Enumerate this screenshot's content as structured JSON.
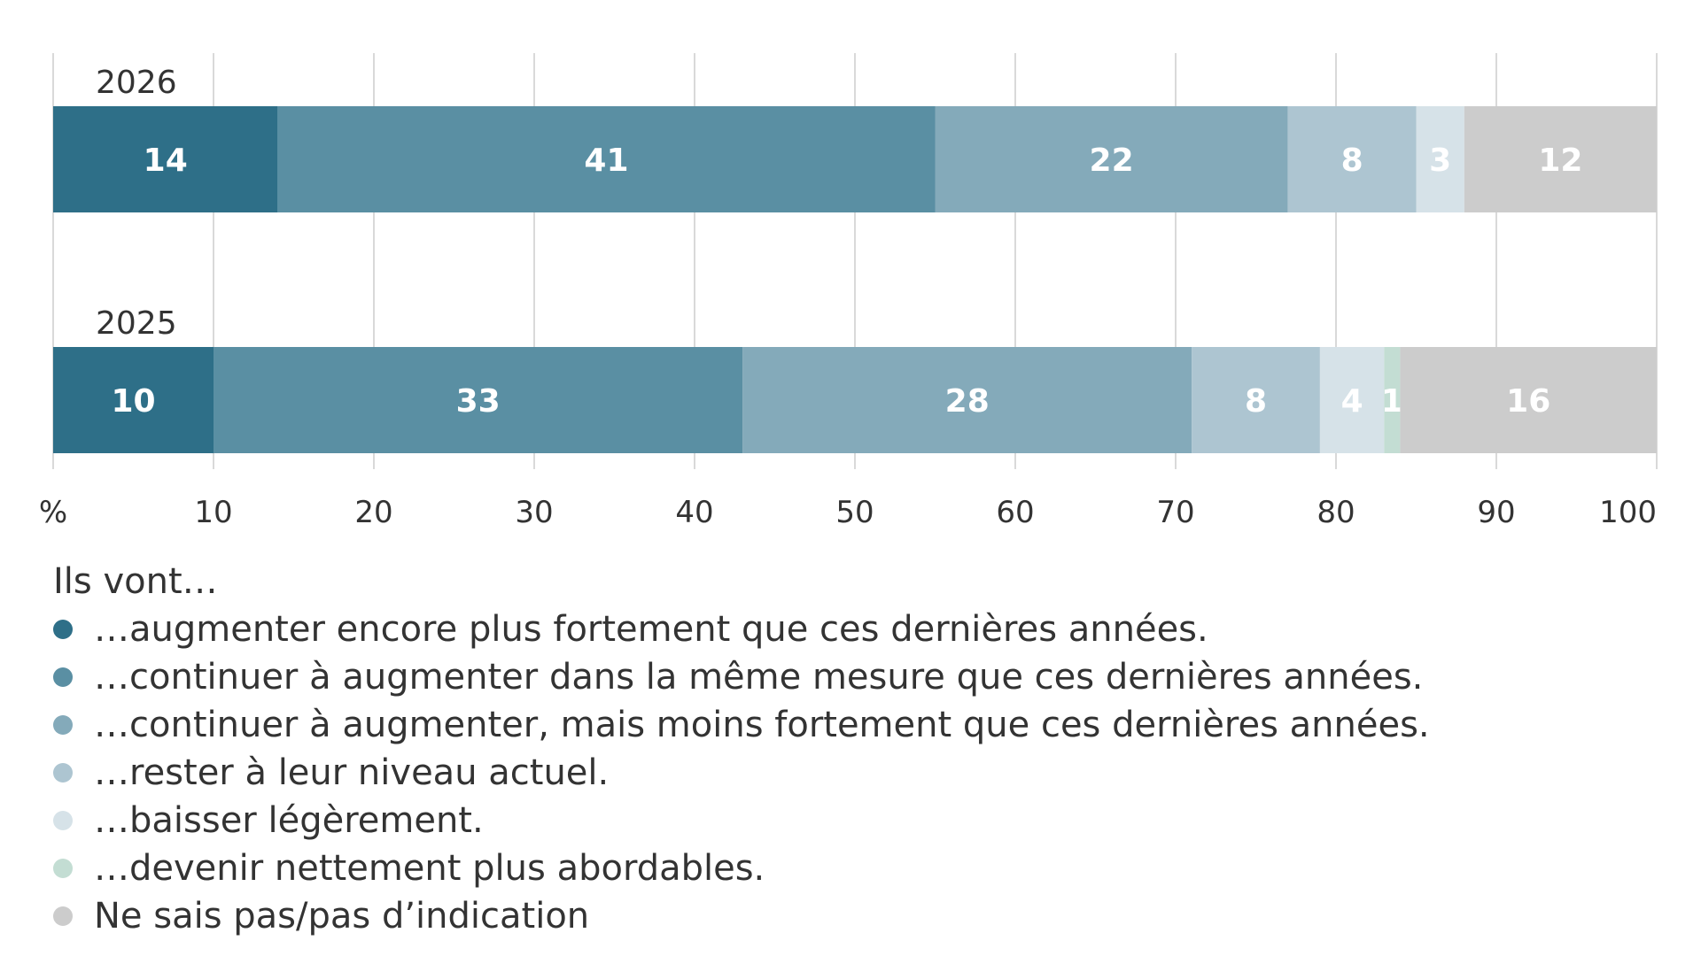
{
  "chart_data": {
    "type": "bar",
    "orientation": "horizontal",
    "stacked": true,
    "axis_unit_label": "%",
    "categories": [
      "2026",
      "2025"
    ],
    "series": [
      {
        "name": "…augmenter encore plus fortement que ces dernières années.",
        "color": "#2e6f88",
        "values": [
          14,
          10
        ]
      },
      {
        "name": "…continuer à augmenter dans la même mesure que ces dernières années.",
        "color": "#5a8fa3",
        "values": [
          41,
          33
        ]
      },
      {
        "name": "…continuer à augmenter, mais moins fortement que ces dernières années.",
        "color": "#84aaba",
        "values": [
          22,
          28
        ]
      },
      {
        "name": "…rester à leur niveau actuel.",
        "color": "#adc5d1",
        "values": [
          8,
          8
        ]
      },
      {
        "name": "…baisser légèrement.",
        "color": "#d6e2e8",
        "values": [
          3,
          4
        ]
      },
      {
        "name": "…devenir nettement plus abordables.",
        "color": "#c3ddd3",
        "values": [
          0,
          1
        ]
      },
      {
        "name": "Ne sais pas/pas d’indication",
        "color": "#cccccc",
        "values": [
          12,
          16
        ]
      }
    ],
    "data_labels": [
      [
        "14",
        "41",
        "22",
        "8",
        "3",
        "",
        "12"
      ],
      [
        "10",
        "33",
        "28",
        "8",
        "4",
        "1",
        "16"
      ]
    ],
    "xlim": [
      0,
      100
    ],
    "xticks": [
      0,
      10,
      20,
      30,
      40,
      50,
      60,
      70,
      80,
      90,
      100
    ],
    "xtick_labels": [
      "%",
      "10",
      "20",
      "30",
      "40",
      "50",
      "60",
      "70",
      "80",
      "90",
      "100"
    ],
    "grid": true,
    "legend_title": "Ils vont…",
    "legend_position": "bottom"
  },
  "legend": {
    "title": "Ils vont…",
    "items": [
      {
        "label": "…augmenter encore plus fortement que ces dernières années.",
        "color": "#2e6f88"
      },
      {
        "label": "…continuer à augmenter dans la même mesure que ces dernières années.",
        "color": "#5a8fa3"
      },
      {
        "label": "…continuer à augmenter, mais moins fortement que ces dernières années.",
        "color": "#84aaba"
      },
      {
        "label": "…rester à leur niveau actuel.",
        "color": "#adc5d1"
      },
      {
        "label": "…baisser légèrement.",
        "color": "#d6e2e8"
      },
      {
        "label": "…devenir nettement plus abordables.",
        "color": "#c3ddd3"
      },
      {
        "label": "Ne sais pas/pas d’indication",
        "color": "#cccccc"
      }
    ]
  }
}
